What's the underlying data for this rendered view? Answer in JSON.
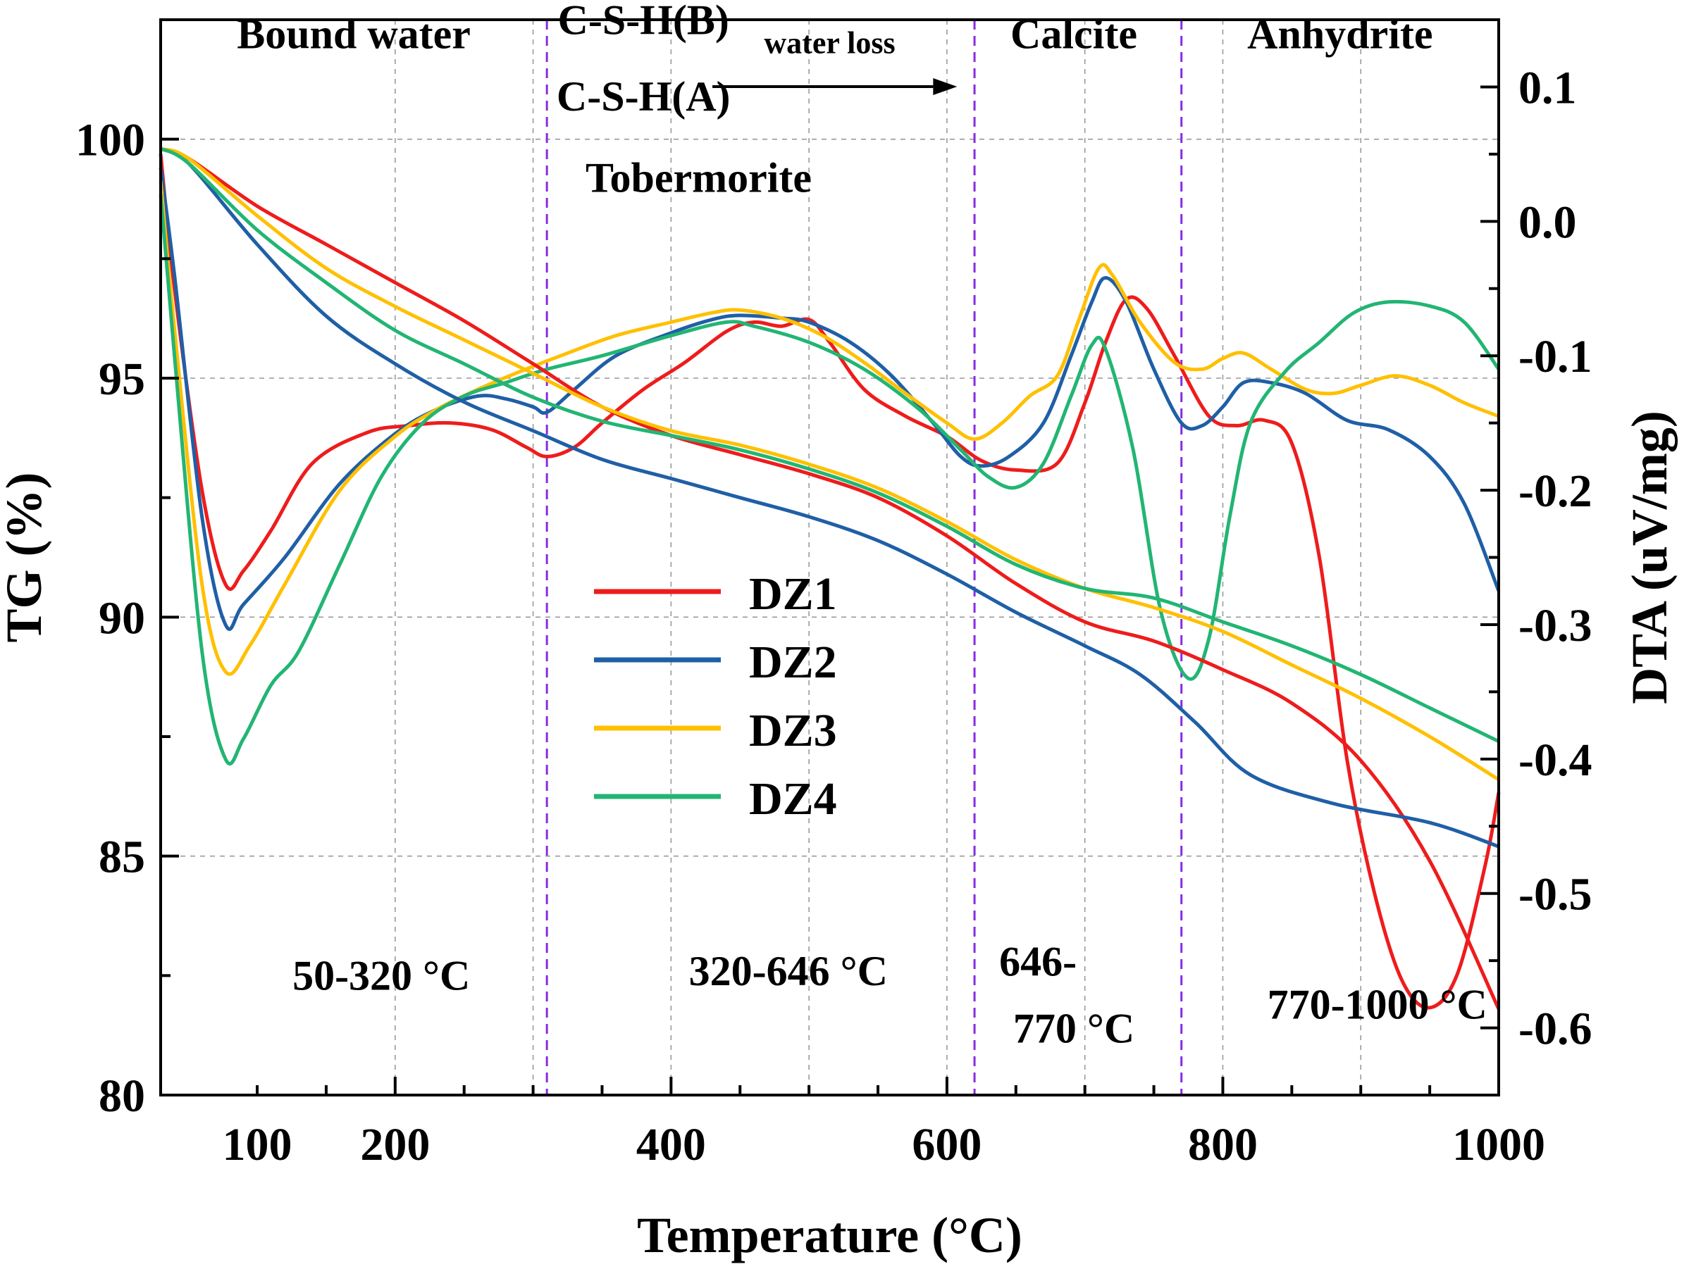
{
  "chart_data": {
    "type": "line",
    "x_label": "Temperature (°C)",
    "y_left_label": "TG (%)",
    "y_right_label": "DTA (uV/mg)",
    "x_range": [
      30,
      1000
    ],
    "y_left_range": [
      80,
      102.5
    ],
    "y_right_range": [
      -0.65,
      0.15
    ],
    "x_ticks": [
      100,
      200,
      400,
      600,
      800,
      1000
    ],
    "y_left_ticks": [
      80,
      85,
      90,
      95,
      100
    ],
    "y_right_ticks": [
      0.1,
      0.0,
      -0.1,
      -0.2,
      -0.3,
      -0.4,
      -0.5,
      -0.6
    ],
    "grid": true,
    "x_tick_labels": [
      "100",
      "200",
      "400",
      "600",
      "800",
      "1000"
    ],
    "y_left_tick_labels": [
      "80",
      "85",
      "90",
      "95",
      "100"
    ],
    "y_right_tick_labels": [
      "0.1",
      "0.0",
      "-0.1",
      "-0.2",
      "-0.3",
      "-0.4",
      "-0.5",
      "-0.6"
    ],
    "region_boundaries": [
      310,
      620,
      770
    ],
    "region_titles": [
      {
        "id": "bound",
        "text": "Bound water",
        "x": 170,
        "y": 101.9
      },
      {
        "id": "csh-b",
        "text": "C-S-H(B)",
        "x": 380,
        "y": 102.2
      },
      {
        "id": "water-loss",
        "text": "water loss",
        "x": 515,
        "y": 101.8
      },
      {
        "id": "csh-a",
        "text": "C-S-H(A)",
        "x": 380,
        "y": 100.6
      },
      {
        "id": "tobermorite",
        "text": "Tobermorite",
        "x": 420,
        "y": 98.9
      },
      {
        "id": "calcite",
        "text": "Calcite",
        "x": 692,
        "y": 101.9
      },
      {
        "id": "anhydrite",
        "text": "Anhydrite",
        "x": 885,
        "y": 101.9
      }
    ],
    "range_labels": [
      {
        "id": "r1",
        "text": "50-320 °C",
        "x": 190,
        "y": 82.2
      },
      {
        "id": "r2",
        "text": "320-646 °C",
        "x": 485,
        "y": 82.3
      },
      {
        "id": "r3a",
        "text": "646-",
        "x": 666,
        "y": 82.5
      },
      {
        "id": "r3b",
        "text": "770 °C",
        "x": 692,
        "y": 81.1
      },
      {
        "id": "r4",
        "text": "770-1000 °C",
        "x": 912,
        "y": 81.6
      }
    ],
    "legend": [
      "DZ1",
      "DZ2",
      "DZ3",
      "DZ4"
    ],
    "legend_position": "center",
    "series": [
      {
        "name": "DZ1",
        "color": "#ee1c1c",
        "tg": [
          [
            30,
            99.8
          ],
          [
            50,
            99.6
          ],
          [
            100,
            98.6
          ],
          [
            150,
            97.8
          ],
          [
            200,
            97.0
          ],
          [
            250,
            96.2
          ],
          [
            300,
            95.3
          ],
          [
            350,
            94.4
          ],
          [
            400,
            93.8
          ],
          [
            450,
            93.4
          ],
          [
            500,
            93.0
          ],
          [
            550,
            92.5
          ],
          [
            600,
            91.7
          ],
          [
            650,
            90.7
          ],
          [
            700,
            89.9
          ],
          [
            750,
            89.5
          ],
          [
            800,
            88.9
          ],
          [
            850,
            88.2
          ],
          [
            900,
            87.0
          ],
          [
            950,
            84.9
          ],
          [
            1000,
            81.8
          ]
        ],
        "dta": [
          [
            30,
            0.05
          ],
          [
            40,
            -0.05
          ],
          [
            60,
            -0.2
          ],
          [
            77,
            -0.27
          ],
          [
            90,
            -0.26
          ],
          [
            110,
            -0.23
          ],
          [
            140,
            -0.18
          ],
          [
            180,
            -0.157
          ],
          [
            210,
            -0.152
          ],
          [
            240,
            -0.15
          ],
          [
            270,
            -0.155
          ],
          [
            295,
            -0.168
          ],
          [
            310,
            -0.175
          ],
          [
            330,
            -0.168
          ],
          [
            350,
            -0.15
          ],
          [
            380,
            -0.125
          ],
          [
            410,
            -0.105
          ],
          [
            440,
            -0.082
          ],
          [
            460,
            -0.075
          ],
          [
            480,
            -0.078
          ],
          [
            500,
            -0.073
          ],
          [
            515,
            -0.09
          ],
          [
            540,
            -0.125
          ],
          [
            570,
            -0.145
          ],
          [
            600,
            -0.16
          ],
          [
            625,
            -0.178
          ],
          [
            650,
            -0.185
          ],
          [
            680,
            -0.18
          ],
          [
            700,
            -0.135
          ],
          [
            715,
            -0.09
          ],
          [
            730,
            -0.058
          ],
          [
            745,
            -0.065
          ],
          [
            765,
            -0.1
          ],
          [
            790,
            -0.145
          ],
          [
            810,
            -0.152
          ],
          [
            830,
            -0.148
          ],
          [
            850,
            -0.165
          ],
          [
            870,
            -0.25
          ],
          [
            890,
            -0.4
          ],
          [
            910,
            -0.5
          ],
          [
            930,
            -0.565
          ],
          [
            950,
            -0.585
          ],
          [
            970,
            -0.56
          ],
          [
            990,
            -0.48
          ],
          [
            1000,
            -0.425
          ]
        ]
      },
      {
        "name": "DZ2",
        "color": "#1f5fa6",
        "tg": [
          [
            30,
            99.8
          ],
          [
            50,
            99.5
          ],
          [
            100,
            97.8
          ],
          [
            150,
            96.3
          ],
          [
            200,
            95.3
          ],
          [
            250,
            94.5
          ],
          [
            300,
            93.9
          ],
          [
            350,
            93.3
          ],
          [
            400,
            92.9
          ],
          [
            450,
            92.5
          ],
          [
            500,
            92.1
          ],
          [
            550,
            91.6
          ],
          [
            600,
            90.9
          ],
          [
            650,
            90.1
          ],
          [
            700,
            89.4
          ],
          [
            740,
            88.8
          ],
          [
            780,
            87.8
          ],
          [
            820,
            86.7
          ],
          [
            880,
            86.1
          ],
          [
            950,
            85.7
          ],
          [
            1000,
            85.2
          ]
        ],
        "dta": [
          [
            30,
            0.04
          ],
          [
            40,
            -0.04
          ],
          [
            60,
            -0.22
          ],
          [
            77,
            -0.3
          ],
          [
            90,
            -0.285
          ],
          [
            120,
            -0.25
          ],
          [
            160,
            -0.195
          ],
          [
            200,
            -0.158
          ],
          [
            230,
            -0.14
          ],
          [
            260,
            -0.13
          ],
          [
            280,
            -0.132
          ],
          [
            300,
            -0.138
          ],
          [
            310,
            -0.142
          ],
          [
            330,
            -0.125
          ],
          [
            360,
            -0.1
          ],
          [
            400,
            -0.083
          ],
          [
            430,
            -0.073
          ],
          [
            450,
            -0.07
          ],
          [
            480,
            -0.072
          ],
          [
            500,
            -0.075
          ],
          [
            530,
            -0.09
          ],
          [
            560,
            -0.115
          ],
          [
            590,
            -0.15
          ],
          [
            610,
            -0.175
          ],
          [
            625,
            -0.182
          ],
          [
            645,
            -0.175
          ],
          [
            670,
            -0.15
          ],
          [
            690,
            -0.1
          ],
          [
            705,
            -0.06
          ],
          [
            715,
            -0.042
          ],
          [
            730,
            -0.06
          ],
          [
            750,
            -0.11
          ],
          [
            770,
            -0.15
          ],
          [
            785,
            -0.152
          ],
          [
            800,
            -0.138
          ],
          [
            815,
            -0.12
          ],
          [
            835,
            -0.12
          ],
          [
            860,
            -0.128
          ],
          [
            890,
            -0.148
          ],
          [
            920,
            -0.155
          ],
          [
            950,
            -0.175
          ],
          [
            975,
            -0.21
          ],
          [
            1000,
            -0.275
          ]
        ]
      },
      {
        "name": "DZ3",
        "color": "#ffc000",
        "tg": [
          [
            30,
            99.8
          ],
          [
            50,
            99.6
          ],
          [
            100,
            98.4
          ],
          [
            150,
            97.3
          ],
          [
            200,
            96.5
          ],
          [
            250,
            95.8
          ],
          [
            300,
            95.1
          ],
          [
            350,
            94.4
          ],
          [
            400,
            93.9
          ],
          [
            450,
            93.6
          ],
          [
            500,
            93.2
          ],
          [
            550,
            92.7
          ],
          [
            600,
            92.0
          ],
          [
            650,
            91.2
          ],
          [
            700,
            90.6
          ],
          [
            750,
            90.2
          ],
          [
            800,
            89.7
          ],
          [
            850,
            89.0
          ],
          [
            900,
            88.3
          ],
          [
            950,
            87.5
          ],
          [
            1000,
            86.6
          ]
        ],
        "dta": [
          [
            30,
            0.03
          ],
          [
            40,
            -0.08
          ],
          [
            60,
            -0.27
          ],
          [
            77,
            -0.335
          ],
          [
            95,
            -0.315
          ],
          [
            120,
            -0.27
          ],
          [
            160,
            -0.2
          ],
          [
            200,
            -0.16
          ],
          [
            230,
            -0.14
          ],
          [
            260,
            -0.125
          ],
          [
            290,
            -0.112
          ],
          [
            320,
            -0.1
          ],
          [
            360,
            -0.085
          ],
          [
            400,
            -0.075
          ],
          [
            430,
            -0.068
          ],
          [
            450,
            -0.066
          ],
          [
            480,
            -0.072
          ],
          [
            510,
            -0.085
          ],
          [
            540,
            -0.105
          ],
          [
            570,
            -0.128
          ],
          [
            600,
            -0.15
          ],
          [
            620,
            -0.162
          ],
          [
            640,
            -0.15
          ],
          [
            660,
            -0.13
          ],
          [
            680,
            -0.115
          ],
          [
            695,
            -0.075
          ],
          [
            710,
            -0.035
          ],
          [
            720,
            -0.04
          ],
          [
            740,
            -0.075
          ],
          [
            765,
            -0.105
          ],
          [
            785,
            -0.11
          ],
          [
            800,
            -0.102
          ],
          [
            815,
            -0.098
          ],
          [
            835,
            -0.11
          ],
          [
            860,
            -0.125
          ],
          [
            880,
            -0.128
          ],
          [
            900,
            -0.122
          ],
          [
            925,
            -0.115
          ],
          [
            950,
            -0.122
          ],
          [
            975,
            -0.135
          ],
          [
            1000,
            -0.145
          ]
        ]
      },
      {
        "name": "DZ4",
        "color": "#22b573",
        "tg": [
          [
            30,
            99.8
          ],
          [
            50,
            99.5
          ],
          [
            100,
            98.1
          ],
          [
            150,
            97.0
          ],
          [
            200,
            96.0
          ],
          [
            250,
            95.3
          ],
          [
            300,
            94.6
          ],
          [
            350,
            94.1
          ],
          [
            400,
            93.8
          ],
          [
            450,
            93.5
          ],
          [
            500,
            93.1
          ],
          [
            550,
            92.6
          ],
          [
            600,
            91.9
          ],
          [
            650,
            91.1
          ],
          [
            700,
            90.6
          ],
          [
            750,
            90.4
          ],
          [
            800,
            89.9
          ],
          [
            850,
            89.4
          ],
          [
            900,
            88.8
          ],
          [
            950,
            88.1
          ],
          [
            1000,
            87.4
          ]
        ],
        "dta": [
          [
            30,
            0.02
          ],
          [
            40,
            -0.1
          ],
          [
            60,
            -0.32
          ],
          [
            77,
            -0.4
          ],
          [
            90,
            -0.385
          ],
          [
            110,
            -0.345
          ],
          [
            130,
            -0.32
          ],
          [
            160,
            -0.255
          ],
          [
            190,
            -0.19
          ],
          [
            220,
            -0.15
          ],
          [
            250,
            -0.13
          ],
          [
            280,
            -0.12
          ],
          [
            310,
            -0.11
          ],
          [
            350,
            -0.1
          ],
          [
            400,
            -0.085
          ],
          [
            440,
            -0.075
          ],
          [
            460,
            -0.078
          ],
          [
            500,
            -0.09
          ],
          [
            540,
            -0.11
          ],
          [
            580,
            -0.14
          ],
          [
            610,
            -0.17
          ],
          [
            630,
            -0.19
          ],
          [
            650,
            -0.198
          ],
          [
            670,
            -0.18
          ],
          [
            690,
            -0.13
          ],
          [
            705,
            -0.092
          ],
          [
            715,
            -0.095
          ],
          [
            735,
            -0.17
          ],
          [
            755,
            -0.29
          ],
          [
            775,
            -0.34
          ],
          [
            790,
            -0.31
          ],
          [
            805,
            -0.22
          ],
          [
            820,
            -0.15
          ],
          [
            845,
            -0.112
          ],
          [
            870,
            -0.09
          ],
          [
            895,
            -0.068
          ],
          [
            920,
            -0.06
          ],
          [
            950,
            -0.063
          ],
          [
            975,
            -0.075
          ],
          [
            1000,
            -0.11
          ]
        ]
      }
    ]
  }
}
